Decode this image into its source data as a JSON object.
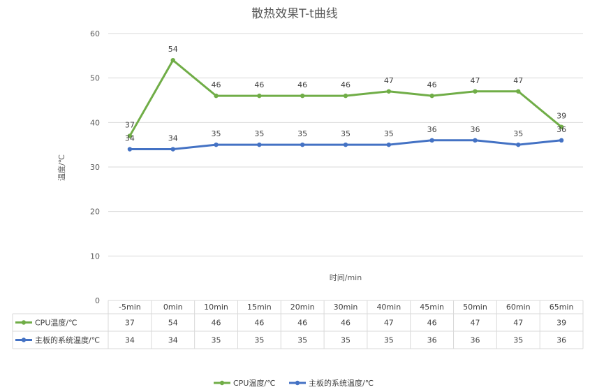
{
  "chart_data": {
    "type": "line",
    "title": "散热效果T-t曲线",
    "xlabel": "时间/min",
    "ylabel": "温度/℃",
    "ylim": [
      0,
      60
    ],
    "yticks": [
      0,
      10,
      20,
      30,
      40,
      50,
      60
    ],
    "grid": true,
    "legend": "bottom",
    "data_table": true,
    "categories": [
      "-5min",
      "0min",
      "10min",
      "15min",
      "20min",
      "30min",
      "40min",
      "45min",
      "50min",
      "60min",
      "65min"
    ],
    "series": [
      {
        "name": "CPU温度/℃",
        "color": "#70ad47",
        "values": [
          37,
          54,
          46,
          46,
          46,
          46,
          47,
          46,
          47,
          47,
          39
        ]
      },
      {
        "name": "主板的系统温度/℃",
        "color": "#4472c4",
        "values": [
          34,
          34,
          35,
          35,
          35,
          35,
          35,
          36,
          36,
          35,
          36
        ]
      }
    ]
  }
}
